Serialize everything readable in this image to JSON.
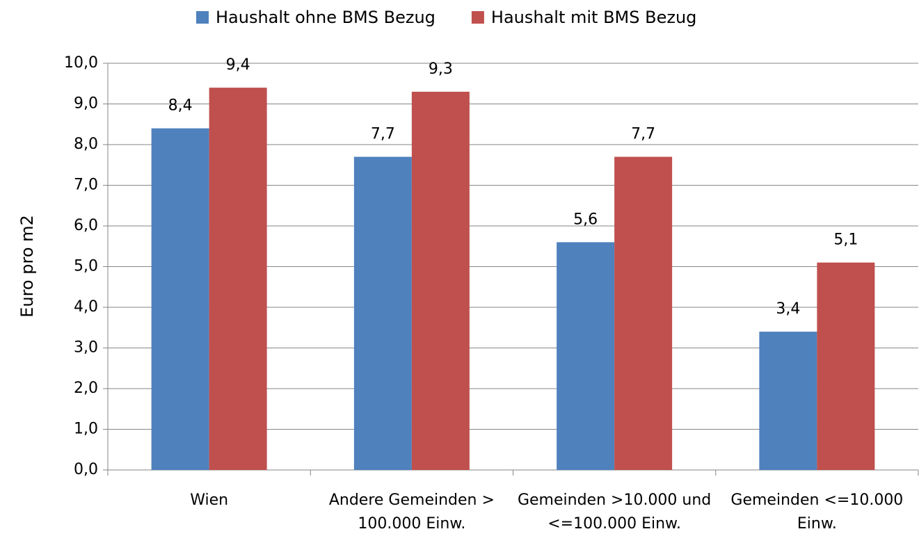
{
  "chart_data": {
    "type": "bar",
    "y_label": "Euro pro m2",
    "categories": [
      "Wien",
      "Andere Gemeinden > 100.000 Einw.",
      "Gemeinden >10.000 und <=100.000 Einw.",
      "Gemeinden <=10.000 Einw."
    ],
    "series": [
      {
        "name": "Haushalt ohne BMS Bezug",
        "color": "#4f81bd",
        "values": [
          8.4,
          7.7,
          5.6,
          3.4
        ],
        "value_labels": [
          "8,4",
          "7,7",
          "5,6",
          "3,4"
        ]
      },
      {
        "name": "Haushalt mit BMS Bezug",
        "color": "#c0504d",
        "values": [
          9.4,
          9.3,
          7.7,
          5.1
        ],
        "value_labels": [
          "9,4",
          "9,3",
          "7,7",
          "5,1"
        ]
      }
    ],
    "ylim": [
      0,
      10
    ],
    "yticks": [
      {
        "value": 0,
        "label": "0,0"
      },
      {
        "value": 1,
        "label": "1,0"
      },
      {
        "value": 2,
        "label": "2,0"
      },
      {
        "value": 3,
        "label": "3,0"
      },
      {
        "value": 4,
        "label": "4,0"
      },
      {
        "value": 5,
        "label": "5,0"
      },
      {
        "value": 6,
        "label": "6,0"
      },
      {
        "value": 7,
        "label": "7,0"
      },
      {
        "value": 8,
        "label": "8,0"
      },
      {
        "value": 9,
        "label": "9,0"
      },
      {
        "value": 10,
        "label": "10,0"
      }
    ],
    "grid": true,
    "legend": "top"
  }
}
